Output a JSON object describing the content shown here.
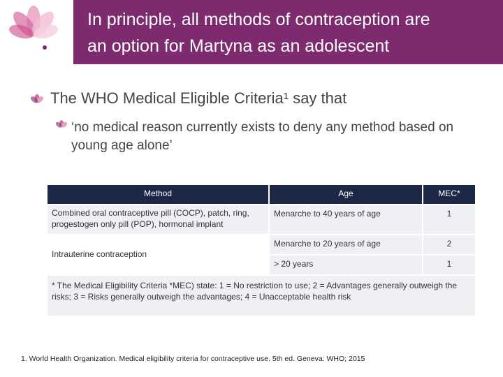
{
  "header": {
    "title_lines": [
      "In principle, all methods of contraception are",
      "an option for Martyna as an adolescent"
    ]
  },
  "bullets": [
    {
      "level": 1,
      "text": "The WHO Medical Eligible Criteria¹ say that"
    },
    {
      "level": 2,
      "text": "‘no medical reason currently exists to deny any method based on young age alone’"
    }
  ],
  "table": {
    "headers": [
      "Method",
      "Age",
      "MEC*"
    ],
    "groups": [
      {
        "method": "Combined oral contraceptive pill (COCP), patch, ring, progestogen only pill (POP), hormonal implant",
        "rows": [
          {
            "age": "Menarche to 40 years of age",
            "mec": 1
          }
        ]
      },
      {
        "method": "Intrauterine contraception",
        "rows": [
          {
            "age": "Menarche to 20 years of age",
            "mec": 2
          },
          {
            "age": "> 20 years",
            "mec": 1
          }
        ]
      }
    ],
    "footnote": "* The Medical Eligibility Criteria *MEC) state: 1 = No restriction to use; 2 = Advantages generally outweigh the risks; 3 = Risks generally outweigh the advantages; 4 = Unacceptable health risk"
  },
  "reference": "1. World Health Organization. Medical eligibility criteria for contraceptive use. 5th ed. Geneva: WHO; 2015"
}
